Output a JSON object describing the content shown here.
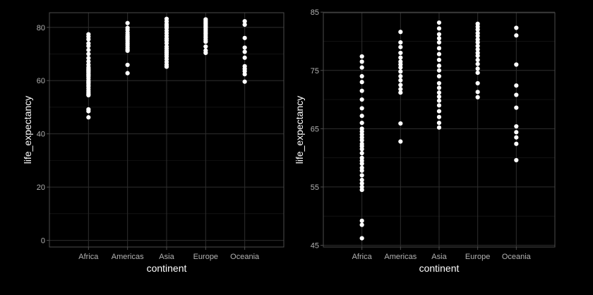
{
  "colors": {
    "background": "#000000",
    "points": "#ffffff",
    "grid": "#2e2e2e",
    "text": "#b3b3b3"
  },
  "chart_data": [
    {
      "type": "scatter",
      "xlabel": "continent",
      "ylabel": "life_expectancy",
      "categories": [
        "Africa",
        "Americas",
        "Asia",
        "Europe",
        "Oceania"
      ],
      "ylim": [
        -2.5,
        85.5
      ],
      "yticks": [
        0,
        20,
        40,
        60,
        80
      ],
      "grid": true,
      "points": {
        "Africa": [
          46.2,
          48.5,
          49.2,
          54.5,
          55.0,
          55.6,
          56.2,
          57.0,
          57.8,
          58.3,
          59.0,
          59.5,
          60.0,
          60.8,
          61.5,
          62.0,
          62.4,
          63.0,
          63.5,
          64.0,
          64.5,
          65.0,
          66.0,
          67.2,
          68.5,
          70.0,
          71.5,
          73.0,
          74.0,
          75.5,
          76.5,
          77.4
        ],
        "Americas": [
          62.8,
          65.9,
          71.2,
          71.8,
          72.5,
          73.3,
          74.0,
          74.8,
          75.5,
          76.0,
          76.5,
          77.2,
          78.0,
          79.0,
          79.8,
          81.6
        ],
        "Asia": [
          65.2,
          66.0,
          67.0,
          68.0,
          69.0,
          69.8,
          70.5,
          71.2,
          72.0,
          72.8,
          74.0,
          75.0,
          75.8,
          76.8,
          77.8,
          78.8,
          79.8,
          80.5,
          81.2,
          82.2,
          83.2
        ],
        "Europe": [
          70.4,
          71.3,
          72.8,
          74.6,
          75.3,
          76.1,
          76.8,
          77.5,
          78.0,
          78.6,
          79.2,
          79.8,
          80.3,
          80.9,
          81.4,
          82.0,
          82.5,
          83.0
        ],
        "Oceania": [
          59.6,
          62.4,
          63.5,
          64.4,
          65.4,
          68.6,
          70.8,
          72.4,
          76.0,
          81.0,
          82.3
        ]
      }
    },
    {
      "type": "scatter",
      "xlabel": "continent",
      "ylabel": "life_expectancy",
      "categories": [
        "Africa",
        "Americas",
        "Asia",
        "Europe",
        "Oceania"
      ],
      "ylim": [
        44.7,
        84.9
      ],
      "yticks": [
        45,
        55,
        65,
        75,
        85
      ],
      "grid": true,
      "points": {
        "Africa": [
          46.2,
          48.5,
          49.2,
          54.5,
          55.0,
          55.6,
          56.2,
          57.0,
          57.8,
          58.3,
          59.0,
          59.5,
          60.0,
          60.8,
          61.5,
          62.0,
          62.4,
          63.0,
          63.5,
          64.0,
          64.5,
          65.0,
          66.0,
          67.2,
          68.5,
          70.0,
          71.5,
          73.0,
          74.0,
          75.5,
          76.5,
          77.4
        ],
        "Americas": [
          62.8,
          65.9,
          71.2,
          71.8,
          72.5,
          73.3,
          74.0,
          74.8,
          75.5,
          76.0,
          76.5,
          77.2,
          78.0,
          79.0,
          79.8,
          81.6
        ],
        "Asia": [
          65.2,
          66.0,
          67.0,
          68.0,
          69.0,
          69.8,
          70.5,
          71.2,
          72.0,
          72.8,
          74.0,
          75.0,
          75.8,
          76.8,
          77.8,
          78.8,
          79.8,
          80.5,
          81.2,
          82.2,
          83.2
        ],
        "Europe": [
          70.4,
          71.3,
          72.8,
          74.6,
          75.3,
          76.1,
          76.8,
          77.5,
          78.0,
          78.6,
          79.2,
          79.8,
          80.3,
          80.9,
          81.4,
          82.0,
          82.5,
          83.0
        ],
        "Oceania": [
          59.6,
          62.4,
          63.5,
          64.4,
          65.4,
          68.6,
          70.8,
          72.4,
          76.0,
          81.0,
          82.3
        ]
      }
    }
  ]
}
